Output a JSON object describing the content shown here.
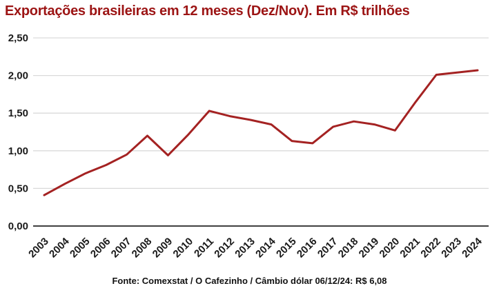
{
  "header": {
    "title": "Exportações brasileiras em 12 meses (Dez/Nov). Em R$ trilhões"
  },
  "footer": {
    "source": "Fonte: Comexstat / O Cafezinho / Câmbio dólar 06/12/24: R$ 6,08"
  },
  "colors": {
    "title": "#9C1414",
    "line": "#A42222",
    "grid": "#D9D9D9",
    "axis": "#3F3F3F",
    "tick_text": "#1A1A1A",
    "background": "#FFFFFF"
  },
  "chart_data": {
    "type": "line",
    "title": "Exportações brasileiras em 12 meses (Dez/Nov). Em R$ trilhões",
    "categories": [
      "2003",
      "2004",
      "2005",
      "2006",
      "2007",
      "2008",
      "2009",
      "2010",
      "2011",
      "2012",
      "2013",
      "2014",
      "2015",
      "2016",
      "2017",
      "2018",
      "2019",
      "2020",
      "2021",
      "2022",
      "2023",
      "2024"
    ],
    "series": [
      {
        "name": "Exportações brasileiras em 12 meses (R$ trilhões)",
        "values": [
          0.41,
          0.56,
          0.7,
          0.81,
          0.95,
          1.2,
          0.94,
          1.22,
          1.53,
          1.46,
          1.41,
          1.35,
          1.13,
          1.1,
          1.32,
          1.39,
          1.35,
          1.27,
          1.65,
          2.01,
          2.04,
          2.07
        ]
      }
    ],
    "xlabel": "",
    "ylabel": "",
    "ylim": [
      0,
      2.5
    ],
    "yticks": {
      "values": [
        0,
        0.5,
        1.0,
        1.5,
        2.0,
        2.5
      ],
      "labels": [
        "0,00",
        "0,50",
        "1,00",
        "1,50",
        "2,00",
        "2,50"
      ]
    },
    "grid": "horizontal",
    "legend": "none",
    "x_axis_label_rotation_deg": 45,
    "decimal_separator": ","
  }
}
